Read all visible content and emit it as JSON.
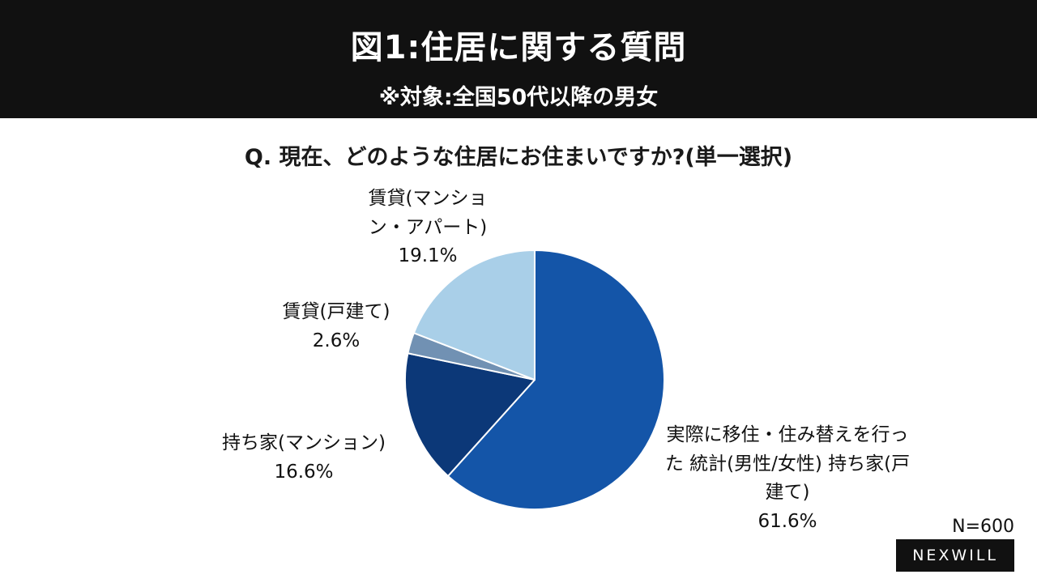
{
  "header": {
    "title": "図1:住居に関する質問",
    "subtitle": "※対象:全国50代以降の男女"
  },
  "question": "Q. 現在、どのような住居にお住まいですか?(単一選択)",
  "chart_data": {
    "type": "pie",
    "title": "Q. 現在、どのような住居にお住まいですか?(単一選択)",
    "start_angle_deg": 0,
    "direction": "clockwise",
    "slices": [
      {
        "label": "実際に移住・住み替えを行った 統計(男性/女性) 持ち家(戸建て)",
        "value": 61.6,
        "pct_text": "61.6%",
        "color": "#1455a8"
      },
      {
        "label": "持ち家(マンション)",
        "value": 16.6,
        "pct_text": "16.6%",
        "color": "#0c3878"
      },
      {
        "label": "賃貸(戸建て)",
        "value": 2.6,
        "pct_text": "2.6%",
        "color": "#7191b3"
      },
      {
        "label": "賃貸(マンション・アパート)",
        "value": 19.1,
        "pct_text": "19.1%",
        "color": "#a9cfe8"
      }
    ],
    "sample_note": "N=600"
  },
  "footer": {
    "sample_size": "N=600",
    "brand": "NEXWILL"
  }
}
